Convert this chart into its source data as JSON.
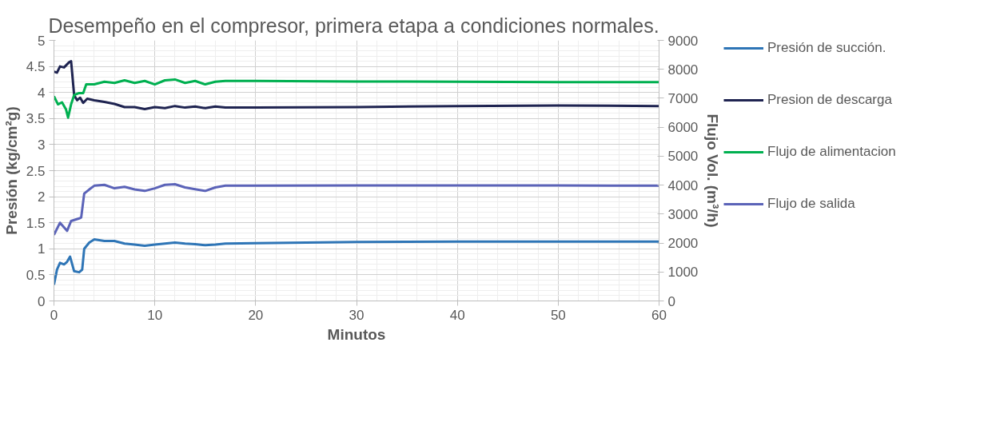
{
  "chart_data": {
    "type": "line",
    "title": "Desempeño en el compresor, primera etapa a  condiciones normales.",
    "xlabel": "Minutos",
    "ylabel": "Presión (kg/cm²g)",
    "y2label": "Flujo Vol. (m³/h)",
    "xlim": [
      0,
      60
    ],
    "xticks": [
      0,
      10,
      20,
      30,
      40,
      50,
      60
    ],
    "ylim": [
      0,
      5
    ],
    "yticks": [
      0,
      0.5,
      1,
      1.5,
      2,
      2.5,
      3,
      3.5,
      4,
      4.5,
      5
    ],
    "y2lim": [
      0,
      9000
    ],
    "y2ticks": [
      0,
      1000,
      2000,
      3000,
      4000,
      5000,
      6000,
      7000,
      8000,
      9000
    ],
    "grid": true,
    "legend": "right",
    "series": [
      {
        "name": "Presión de succión.",
        "color": "#2e75b6",
        "x": [
          0,
          0.3,
          0.6,
          1.0,
          1.3,
          1.6,
          2.0,
          2.5,
          2.8,
          3.0,
          3.5,
          4,
          5,
          6,
          7,
          8,
          9,
          10,
          11,
          12,
          13,
          14,
          15,
          16,
          17,
          20,
          30,
          40,
          50,
          60
        ],
        "values": [
          0.31,
          0.6,
          0.73,
          0.7,
          0.75,
          0.85,
          0.57,
          0.55,
          0.6,
          1.0,
          1.12,
          1.18,
          1.15,
          1.15,
          1.1,
          1.08,
          1.06,
          1.08,
          1.1,
          1.12,
          1.1,
          1.09,
          1.07,
          1.08,
          1.1,
          1.11,
          1.13,
          1.14,
          1.14,
          1.14
        ]
      },
      {
        "name": "Presion de descarga",
        "color": "#1f2451",
        "x": [
          0,
          0.3,
          0.6,
          1.0,
          1.5,
          1.7,
          2.0,
          2.3,
          2.6,
          2.9,
          3.3,
          4,
          5,
          6,
          7,
          8,
          9,
          10,
          11,
          12,
          13,
          14,
          15,
          16,
          17,
          20,
          30,
          40,
          50,
          60
        ],
        "values": [
          4.4,
          4.38,
          4.5,
          4.48,
          4.58,
          4.6,
          3.95,
          3.85,
          3.9,
          3.8,
          3.88,
          3.85,
          3.82,
          3.78,
          3.72,
          3.72,
          3.68,
          3.72,
          3.7,
          3.74,
          3.71,
          3.73,
          3.7,
          3.73,
          3.71,
          3.71,
          3.72,
          3.74,
          3.75,
          3.74
        ]
      },
      {
        "name": "Flujo de alimentacion",
        "color": "#00b050",
        "axis": "y2",
        "x": [
          0,
          0.4,
          0.8,
          1.2,
          1.4,
          1.7,
          2.0,
          2.5,
          2.9,
          3.2,
          4,
          5,
          6,
          7,
          8,
          9,
          10,
          11,
          12,
          13,
          14,
          15,
          16,
          17,
          20,
          30,
          40,
          50,
          60
        ],
        "values": [
          7070,
          6790,
          6860,
          6610,
          6330,
          6790,
          7110,
          7180,
          7180,
          7480,
          7480,
          7570,
          7530,
          7620,
          7530,
          7600,
          7480,
          7620,
          7650,
          7530,
          7600,
          7480,
          7570,
          7600,
          7600,
          7580,
          7570,
          7560,
          7560
        ]
      },
      {
        "name": "Flujo de salida",
        "color": "#5b63b8",
        "axis": "y2",
        "x": [
          0,
          0.6,
          1.3,
          1.7,
          2.5,
          2.7,
          3.0,
          3.5,
          4,
          5,
          6,
          7,
          8,
          9,
          10,
          11,
          12,
          13,
          14,
          15,
          16,
          17,
          20,
          30,
          40,
          50,
          60
        ],
        "values": [
          2280,
          2700,
          2420,
          2760,
          2850,
          2880,
          3710,
          3850,
          3980,
          4010,
          3890,
          3940,
          3850,
          3800,
          3890,
          4010,
          4030,
          3920,
          3860,
          3800,
          3920,
          3980,
          3980,
          3990,
          3990,
          3990,
          3980
        ]
      }
    ]
  }
}
